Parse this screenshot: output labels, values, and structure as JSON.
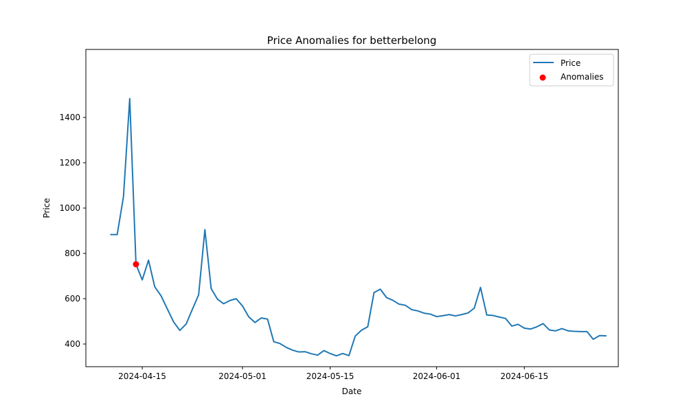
{
  "chart_data": {
    "type": "line",
    "title": "Price Anomalies for betterbelong",
    "xlabel": "Date",
    "ylabel": "Price",
    "x_type": "date",
    "xlim": [
      "2024-04-06",
      "2024-06-30"
    ],
    "ylim": [
      300,
      1700
    ],
    "ylim_visible": [
      300,
      1500
    ],
    "xticks": [
      {
        "date": "2024-04-15",
        "label": "2024-04-15"
      },
      {
        "date": "2024-05-01",
        "label": "2024-05-01"
      },
      {
        "date": "2024-05-15",
        "label": "2024-05-15"
      },
      {
        "date": "2024-06-01",
        "label": "2024-06-01"
      },
      {
        "date": "2024-06-15",
        "label": "2024-06-15"
      }
    ],
    "yticks": [
      400,
      600,
      800,
      1000,
      1200,
      1400
    ],
    "grid": false,
    "legend_position": "top-right",
    "series": [
      {
        "name": "Price",
        "color": "#1f77b4",
        "style": "line",
        "points": [
          [
            "2024-04-10",
            883
          ],
          [
            "2024-04-11",
            883
          ],
          [
            "2024-04-12",
            1050
          ],
          [
            "2024-04-13",
            1483
          ],
          [
            "2024-04-14",
            752
          ],
          [
            "2024-04-15",
            683
          ],
          [
            "2024-04-16",
            770
          ],
          [
            "2024-04-17",
            652
          ],
          [
            "2024-04-18",
            613
          ],
          [
            "2024-04-19",
            555
          ],
          [
            "2024-04-20",
            498
          ],
          [
            "2024-04-21",
            460
          ],
          [
            "2024-04-22",
            488
          ],
          [
            "2024-04-23",
            553
          ],
          [
            "2024-04-24",
            617
          ],
          [
            "2024-04-25",
            905
          ],
          [
            "2024-04-26",
            645
          ],
          [
            "2024-04-27",
            598
          ],
          [
            "2024-04-28",
            578
          ],
          [
            "2024-04-29",
            592
          ],
          [
            "2024-04-30",
            600
          ],
          [
            "2024-05-01",
            568
          ],
          [
            "2024-05-02",
            520
          ],
          [
            "2024-05-03",
            495
          ],
          [
            "2024-05-04",
            515
          ],
          [
            "2024-05-05",
            510
          ],
          [
            "2024-05-06",
            410
          ],
          [
            "2024-05-07",
            402
          ],
          [
            "2024-05-08",
            385
          ],
          [
            "2024-05-09",
            373
          ],
          [
            "2024-05-10",
            365
          ],
          [
            "2024-05-11",
            366
          ],
          [
            "2024-05-12",
            357
          ],
          [
            "2024-05-13",
            351
          ],
          [
            "2024-05-14",
            371
          ],
          [
            "2024-05-15",
            358
          ],
          [
            "2024-05-16",
            348
          ],
          [
            "2024-05-17",
            358
          ],
          [
            "2024-05-18",
            349
          ],
          [
            "2024-05-19",
            435
          ],
          [
            "2024-05-20",
            461
          ],
          [
            "2024-05-21",
            476
          ],
          [
            "2024-05-22",
            627
          ],
          [
            "2024-05-23",
            642
          ],
          [
            "2024-05-24",
            605
          ],
          [
            "2024-05-25",
            593
          ],
          [
            "2024-05-26",
            576
          ],
          [
            "2024-05-27",
            571
          ],
          [
            "2024-05-28",
            552
          ],
          [
            "2024-05-29",
            546
          ],
          [
            "2024-05-30",
            536
          ],
          [
            "2024-05-31",
            532
          ],
          [
            "2024-06-01",
            521
          ],
          [
            "2024-06-02",
            525
          ],
          [
            "2024-06-03",
            530
          ],
          [
            "2024-06-04",
            524
          ],
          [
            "2024-06-05",
            530
          ],
          [
            "2024-06-06",
            537
          ],
          [
            "2024-06-07",
            558
          ],
          [
            "2024-06-08",
            650
          ],
          [
            "2024-06-09",
            528
          ],
          [
            "2024-06-10",
            526
          ],
          [
            "2024-06-11",
            519
          ],
          [
            "2024-06-12",
            513
          ],
          [
            "2024-06-13",
            479
          ],
          [
            "2024-06-14",
            487
          ],
          [
            "2024-06-15",
            470
          ],
          [
            "2024-06-16",
            466
          ],
          [
            "2024-06-17",
            476
          ],
          [
            "2024-06-18",
            490
          ],
          [
            "2024-06-19",
            462
          ],
          [
            "2024-06-20",
            458
          ],
          [
            "2024-06-21",
            468
          ],
          [
            "2024-06-22",
            458
          ],
          [
            "2024-06-23",
            456
          ],
          [
            "2024-06-24",
            455
          ],
          [
            "2024-06-25",
            455
          ],
          [
            "2024-06-26",
            421
          ],
          [
            "2024-06-27",
            437
          ],
          [
            "2024-06-28",
            436
          ]
        ]
      },
      {
        "name": "Anomalies",
        "color": "#ff0000",
        "style": "scatter",
        "points": [
          [
            "2024-04-14",
            752
          ]
        ]
      }
    ]
  }
}
